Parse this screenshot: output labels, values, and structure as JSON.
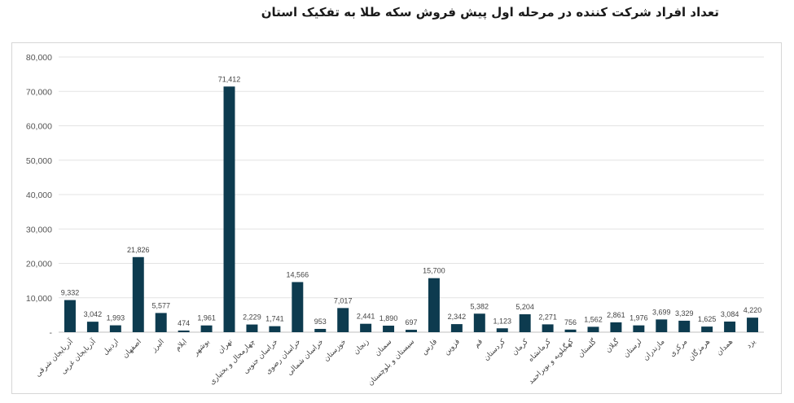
{
  "chart_data": {
    "type": "bar",
    "title": "تعداد افراد شرکت کننده در مرحله اول پیش فروش سکه طلا به تفکیک استان",
    "xlabel": "",
    "ylabel": "",
    "ylim": [
      0,
      80000
    ],
    "yticks": [
      0,
      10000,
      20000,
      30000,
      40000,
      50000,
      60000,
      70000,
      80000
    ],
    "ytick_labels": [
      "-",
      "10,000",
      "20,000",
      "30,000",
      "40,000",
      "50,000",
      "60,000",
      "70,000",
      "80,000"
    ],
    "grid": true,
    "bar_color": "#0d3b4f",
    "categories": [
      "آذربایجان شرقی",
      "آذربایجان غربی",
      "اردبیل",
      "اصفهان",
      "البرز",
      "ایلام",
      "بوشهر",
      "تهران",
      "چهارمحال و بختیاری",
      "خراسان جنوبی",
      "خراسان رضوی",
      "خراسان شمالی",
      "خوزستان",
      "زنجان",
      "سمنان",
      "سیستان و بلوچستان",
      "فارس",
      "قزوین",
      "قم",
      "کردستان",
      "کرمان",
      "کرمانشاه",
      "کهگیلویه و بویراحمد",
      "گلستان",
      "گیلان",
      "لرستان",
      "مازندران",
      "مرکزی",
      "هرمزگان",
      "همدان",
      "یزد"
    ],
    "values": [
      9332,
      3042,
      1993,
      21826,
      5577,
      474,
      1961,
      71412,
      2229,
      1741,
      14566,
      953,
      7017,
      2441,
      1890,
      697,
      15700,
      2342,
      5382,
      1123,
      5204,
      2271,
      756,
      1562,
      2861,
      1976,
      3699,
      3329,
      1625,
      3084,
      4220
    ],
    "value_labels": [
      "9,332",
      "3,042",
      "1,993",
      "21,826",
      "5,577",
      "474",
      "1,961",
      "71,412",
      "2,229",
      "1,741",
      "14,566",
      "953",
      "7,017",
      "2,441",
      "1,890",
      "697",
      "15,700",
      "2,342",
      "5,382",
      "1,123",
      "5,204",
      "2,271",
      "756",
      "1,562",
      "2,861",
      "1,976",
      "3,699",
      "3,329",
      "1,625",
      "3,084",
      "4,220"
    ]
  }
}
